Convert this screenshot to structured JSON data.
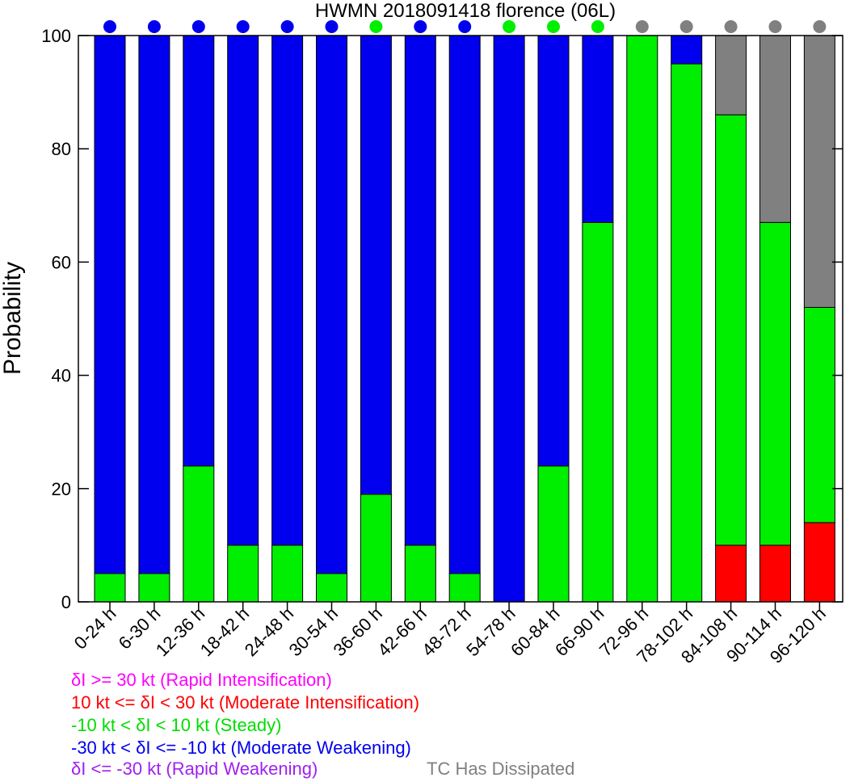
{
  "chart_data": {
    "type": "bar",
    "stacked": true,
    "title": "HWMN 2018091418 florence (06L)",
    "xlabel": "",
    "ylabel": "Probability",
    "ylim": [
      0,
      100
    ],
    "yticks": [
      0,
      20,
      40,
      60,
      80,
      100
    ],
    "categories": [
      "0-24 h",
      "6-30 h",
      "12-36 h",
      "18-42 h",
      "24-48 h",
      "30-54 h",
      "36-60 h",
      "42-66 h",
      "48-72 h",
      "54-78 h",
      "60-84 h",
      "66-90 h",
      "72-96 h",
      "78-102 h",
      "84-108 h",
      "90-114 h",
      "96-120 h"
    ],
    "series": [
      {
        "name": "10 kt <= δI < 30 kt (Moderate Intensification)",
        "color": "#ff0000",
        "values": [
          0,
          0,
          0,
          0,
          0,
          0,
          0,
          0,
          0,
          0,
          0,
          0,
          0,
          0,
          10,
          10,
          14
        ]
      },
      {
        "name": "-10 kt < δI < 10 kt (Steady)",
        "color": "#00ee00",
        "values": [
          5,
          5,
          24,
          10,
          10,
          5,
          19,
          10,
          5,
          0,
          24,
          67,
          100,
          95,
          76,
          57,
          38
        ]
      },
      {
        "name": "-30 kt < δI <= -10 kt (Moderate Weakening)",
        "color": "#0000ee",
        "values": [
          95,
          95,
          76,
          90,
          90,
          95,
          81,
          90,
          95,
          100,
          76,
          33,
          0,
          5,
          0,
          0,
          0
        ]
      },
      {
        "name": "TC Has Dissipated",
        "color": "#808080",
        "values": [
          0,
          0,
          0,
          0,
          0,
          0,
          0,
          0,
          0,
          0,
          0,
          0,
          0,
          0,
          14,
          33,
          48
        ]
      }
    ],
    "markers": [
      "blue",
      "blue",
      "blue",
      "blue",
      "blue",
      "blue",
      "green",
      "blue",
      "blue",
      "green",
      "green",
      "green",
      "gray",
      "gray",
      "gray",
      "gray",
      "gray"
    ],
    "marker_colors": {
      "blue": "#0000ee",
      "green": "#00ee00",
      "gray": "#808080"
    },
    "legend": [
      {
        "text": "δI >= 30 kt (Rapid Intensification)",
        "color": "#ff00ff"
      },
      {
        "text": "10 kt <= δI < 30 kt (Moderate Intensification)",
        "color": "#ff0000"
      },
      {
        "text": "-10 kt < δI < 10 kt (Steady)",
        "color": "#00dd00"
      },
      {
        "text": "-30 kt < δI <= -10 kt (Moderate Weakening)",
        "color": "#0000ee"
      },
      {
        "text": "δI <= -30 kt (Rapid Weakening)",
        "color": "#a020f0"
      },
      {
        "text": "TC Has Dissipated",
        "color": "#808080"
      }
    ]
  }
}
